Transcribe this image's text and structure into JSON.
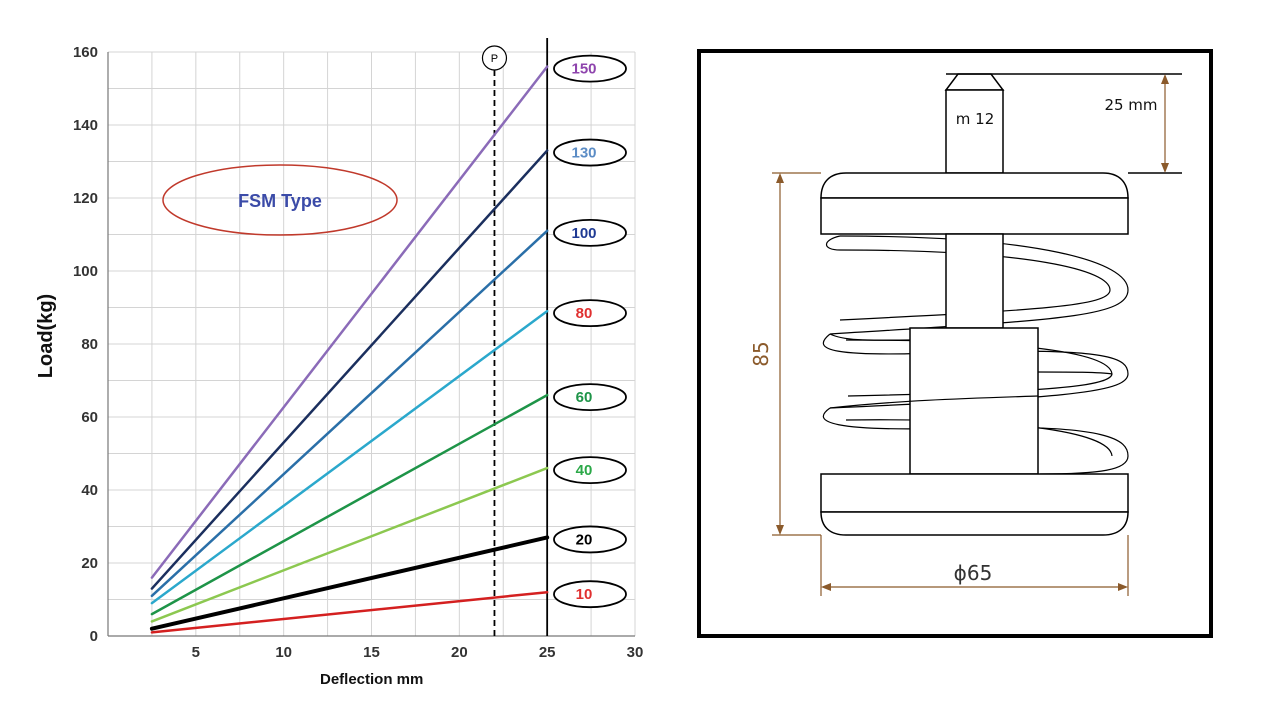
{
  "chart_data": {
    "type": "line",
    "title": "",
    "xlabel": "Deflection  mm",
    "ylabel": "Load(kg)",
    "xlim": [
      0,
      30
    ],
    "ylim": [
      0,
      160
    ],
    "x_ticks": [
      5,
      10,
      15,
      20,
      25,
      30
    ],
    "x_tick_labels": [
      "5",
      "10",
      "15",
      "20",
      "25",
      "30"
    ],
    "y_ticks": [
      0,
      20,
      40,
      60,
      80,
      100,
      120,
      140,
      160
    ],
    "y_tick_labels": [
      "0",
      "20",
      "40",
      "60",
      "80",
      "100",
      "120",
      "140",
      "160"
    ],
    "grid": true,
    "annotation": "FSM Type",
    "marker_label": "P",
    "marker_x": 22,
    "limit_x": 25,
    "series": [
      {
        "name": "150",
        "color": "#8B6BB8",
        "label_color": "#8E44AD",
        "x": [
          2.5,
          25
        ],
        "values": [
          16,
          156
        ]
      },
      {
        "name": "130",
        "color": "#1B2F5E",
        "label_color": "#5B8CC5",
        "x": [
          2.5,
          25
        ],
        "values": [
          13,
          133
        ]
      },
      {
        "name": "100",
        "color": "#2A6FA8",
        "label_color": "#1F3A93",
        "x": [
          2.5,
          25
        ],
        "values": [
          11,
          111
        ]
      },
      {
        "name": "80",
        "color": "#2BA8CC",
        "label_color": "#E03030",
        "x": [
          2.5,
          25
        ],
        "values": [
          9,
          89
        ]
      },
      {
        "name": "60",
        "color": "#1E9448",
        "label_color": "#1E9448",
        "x": [
          2.5,
          25
        ],
        "values": [
          6,
          66
        ]
      },
      {
        "name": "40",
        "color": "#8CC850",
        "label_color": "#2BA848",
        "x": [
          2.5,
          25
        ],
        "values": [
          4,
          46
        ]
      },
      {
        "name": "20",
        "color": "#000000",
        "label_color": "#000000",
        "x": [
          2.5,
          25
        ],
        "values": [
          2,
          27
        ]
      },
      {
        "name": "10",
        "color": "#D42020",
        "label_color": "#E03030",
        "x": [
          2.5,
          25
        ],
        "values": [
          1,
          12
        ]
      }
    ]
  },
  "drawing": {
    "bolt_label": "m 12",
    "height_label": "25 mm",
    "body_height_label": "85",
    "diameter_label": "ϕ65"
  }
}
